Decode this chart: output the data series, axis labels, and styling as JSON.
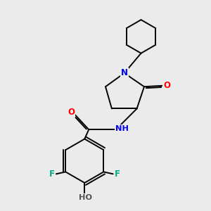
{
  "bg_color": "#ebebeb",
  "bond_color": "#000000",
  "atom_colors": {
    "N": "#0000ee",
    "O": "#ff0000",
    "F": "#00aa88",
    "H": "#555555",
    "C": "#000000"
  }
}
